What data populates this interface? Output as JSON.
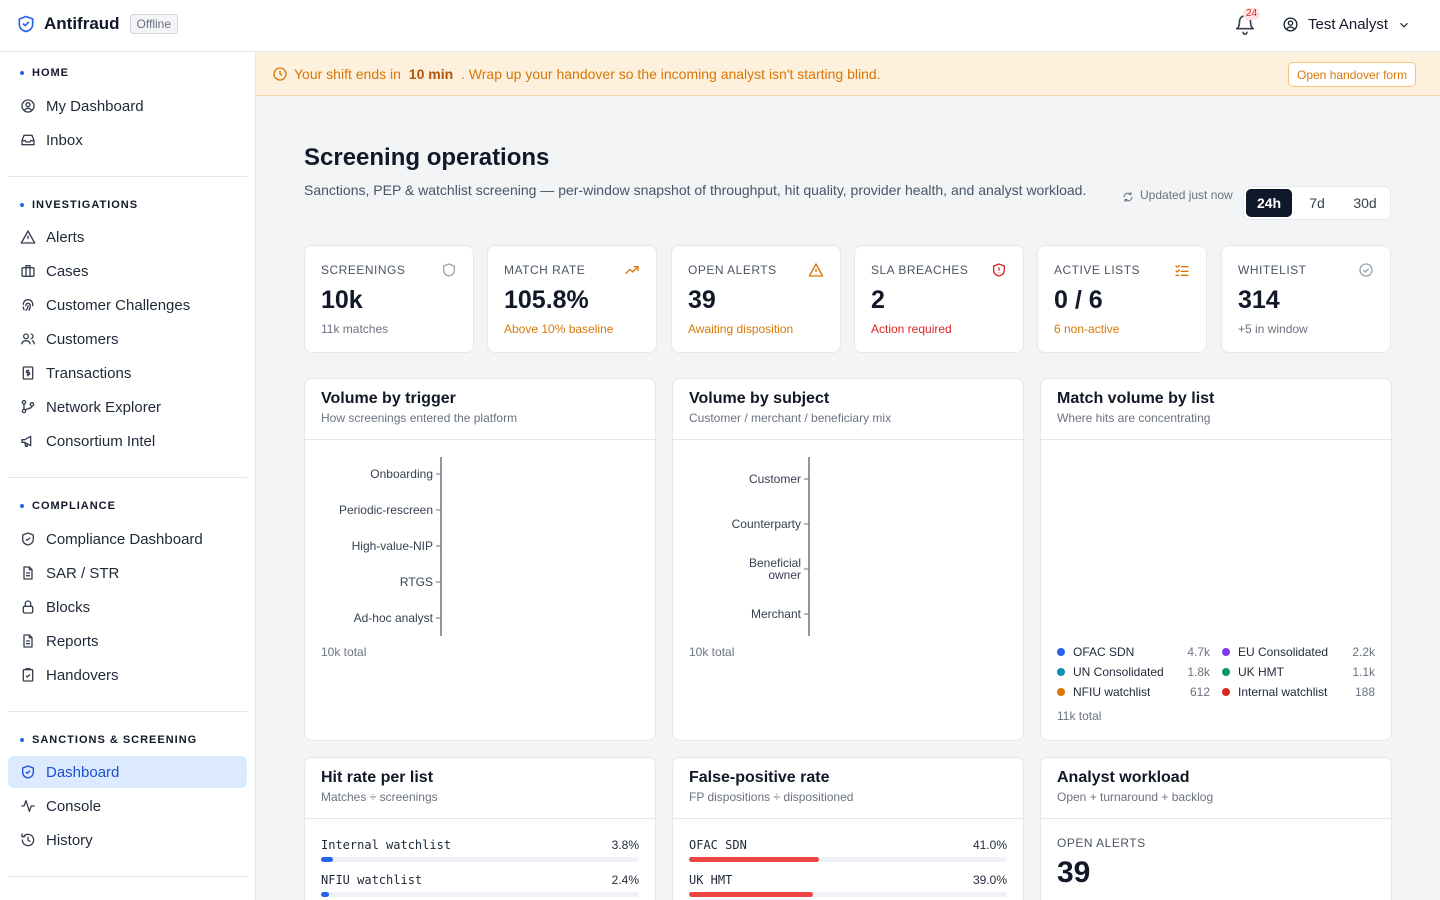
{
  "app": {
    "name": "Antifraud",
    "status_badge": "Offline",
    "notifications": "24",
    "user": "Test Analyst"
  },
  "sidebar": {
    "sections": [
      {
        "title": "HOME",
        "items": [
          "My Dashboard",
          "Inbox"
        ]
      },
      {
        "title": "INVESTIGATIONS",
        "items": [
          "Alerts",
          "Cases",
          "Customer Challenges",
          "Customers",
          "Transactions",
          "Network Explorer",
          "Consortium Intel"
        ]
      },
      {
        "title": "COMPLIANCE",
        "items": [
          "Compliance Dashboard",
          "SAR / STR",
          "Blocks",
          "Reports",
          "Handovers"
        ]
      },
      {
        "title": "SANCTIONS & SCREENING",
        "items": [
          "Dashboard",
          "Console",
          "History"
        ]
      }
    ],
    "active_item": "Dashboard"
  },
  "banner": {
    "prefix": "Your shift ends in",
    "time": "10 min",
    "suffix": ". Wrap up your handover so the incoming analyst isn't starting blind.",
    "button": "Open handover form"
  },
  "header": {
    "title": "Screening operations",
    "subtitle": "Sanctions, PEP & watchlist screening — per-window snapshot of throughput, hit quality, provider health, and analyst workload.",
    "updated": "Updated just now",
    "ranges": [
      "24h",
      "7d",
      "30d"
    ],
    "active_range": "24h"
  },
  "stats": [
    {
      "label": "SCREENINGS",
      "value": "10k",
      "note": "11k matches",
      "note_color": "#6b7280",
      "icon": "shield-icon",
      "icon_color": "#9ca3af"
    },
    {
      "label": "MATCH RATE",
      "value": "105.8%",
      "note": "Above 10% baseline",
      "note_color": "#d97706",
      "icon": "trending-up-icon",
      "icon_color": "#d97706"
    },
    {
      "label": "OPEN ALERTS",
      "value": "39",
      "note": "Awaiting disposition",
      "note_color": "#d97706",
      "icon": "warning-triangle-icon",
      "icon_color": "#d97706"
    },
    {
      "label": "SLA BREACHES",
      "value": "2",
      "note": "Action required",
      "note_color": "#dc2626",
      "icon": "shield-alert-icon",
      "icon_color": "#dc2626"
    },
    {
      "label": "ACTIVE LISTS",
      "value": "0 / 6",
      "note": "6 non-active",
      "note_color": "#d97706",
      "icon": "list-check-icon",
      "icon_color": "#d97706"
    },
    {
      "label": "WHITELIST",
      "value": "314",
      "note": "+5 in window",
      "note_color": "#6b7280",
      "icon": "check-circle-icon",
      "icon_color": "#9ca3af"
    }
  ],
  "panels": {
    "trigger": {
      "title": "Volume by trigger",
      "subtitle": "How screenings entered the platform",
      "categories": [
        "Onboarding",
        "Periodic-rescreen",
        "High-value-NIP",
        "RTGS",
        "Ad-hoc analyst"
      ],
      "total": "10k total"
    },
    "subject": {
      "title": "Volume by subject",
      "subtitle": "Customer / merchant / beneficiary mix",
      "categories": [
        "Customer",
        "Counterparty",
        "Beneficial owner",
        "Merchant"
      ],
      "total": "10k total"
    },
    "list": {
      "title": "Match volume by list",
      "subtitle": "Where hits are concentrating",
      "total": "11k total",
      "legend": [
        {
          "name": "OFAC SDN",
          "value": "4.7k",
          "color": "#2563eb"
        },
        {
          "name": "EU Consolidated",
          "value": "2.2k",
          "color": "#7c3aed"
        },
        {
          "name": "UN Consolidated",
          "value": "1.8k",
          "color": "#0891b2"
        },
        {
          "name": "UK HMT",
          "value": "1.1k",
          "color": "#059669"
        },
        {
          "name": "NFIU watchlist",
          "value": "612",
          "color": "#d97706"
        },
        {
          "name": "Internal watchlist",
          "value": "188",
          "color": "#dc2626"
        }
      ]
    },
    "hitrate": {
      "title": "Hit rate per list",
      "subtitle": "Matches ÷ screenings",
      "rows": [
        {
          "name": "Internal watchlist",
          "pct": "3.8%",
          "value": 3.8
        },
        {
          "name": "NFIU watchlist",
          "pct": "2.4%",
          "value": 2.4
        }
      ]
    },
    "fprate": {
      "title": "False-positive rate",
      "subtitle": "FP dispositions ÷ dispositioned",
      "rows": [
        {
          "name": "OFAC SDN",
          "pct": "41.0%",
          "value": 41.0
        },
        {
          "name": "UK HMT",
          "pct": "39.0%",
          "value": 39.0
        }
      ]
    },
    "workload": {
      "title": "Analyst workload",
      "subtitle": "Open + turnaround + backlog",
      "metric_label": "OPEN ALERTS",
      "metric_value": "39"
    }
  }
}
